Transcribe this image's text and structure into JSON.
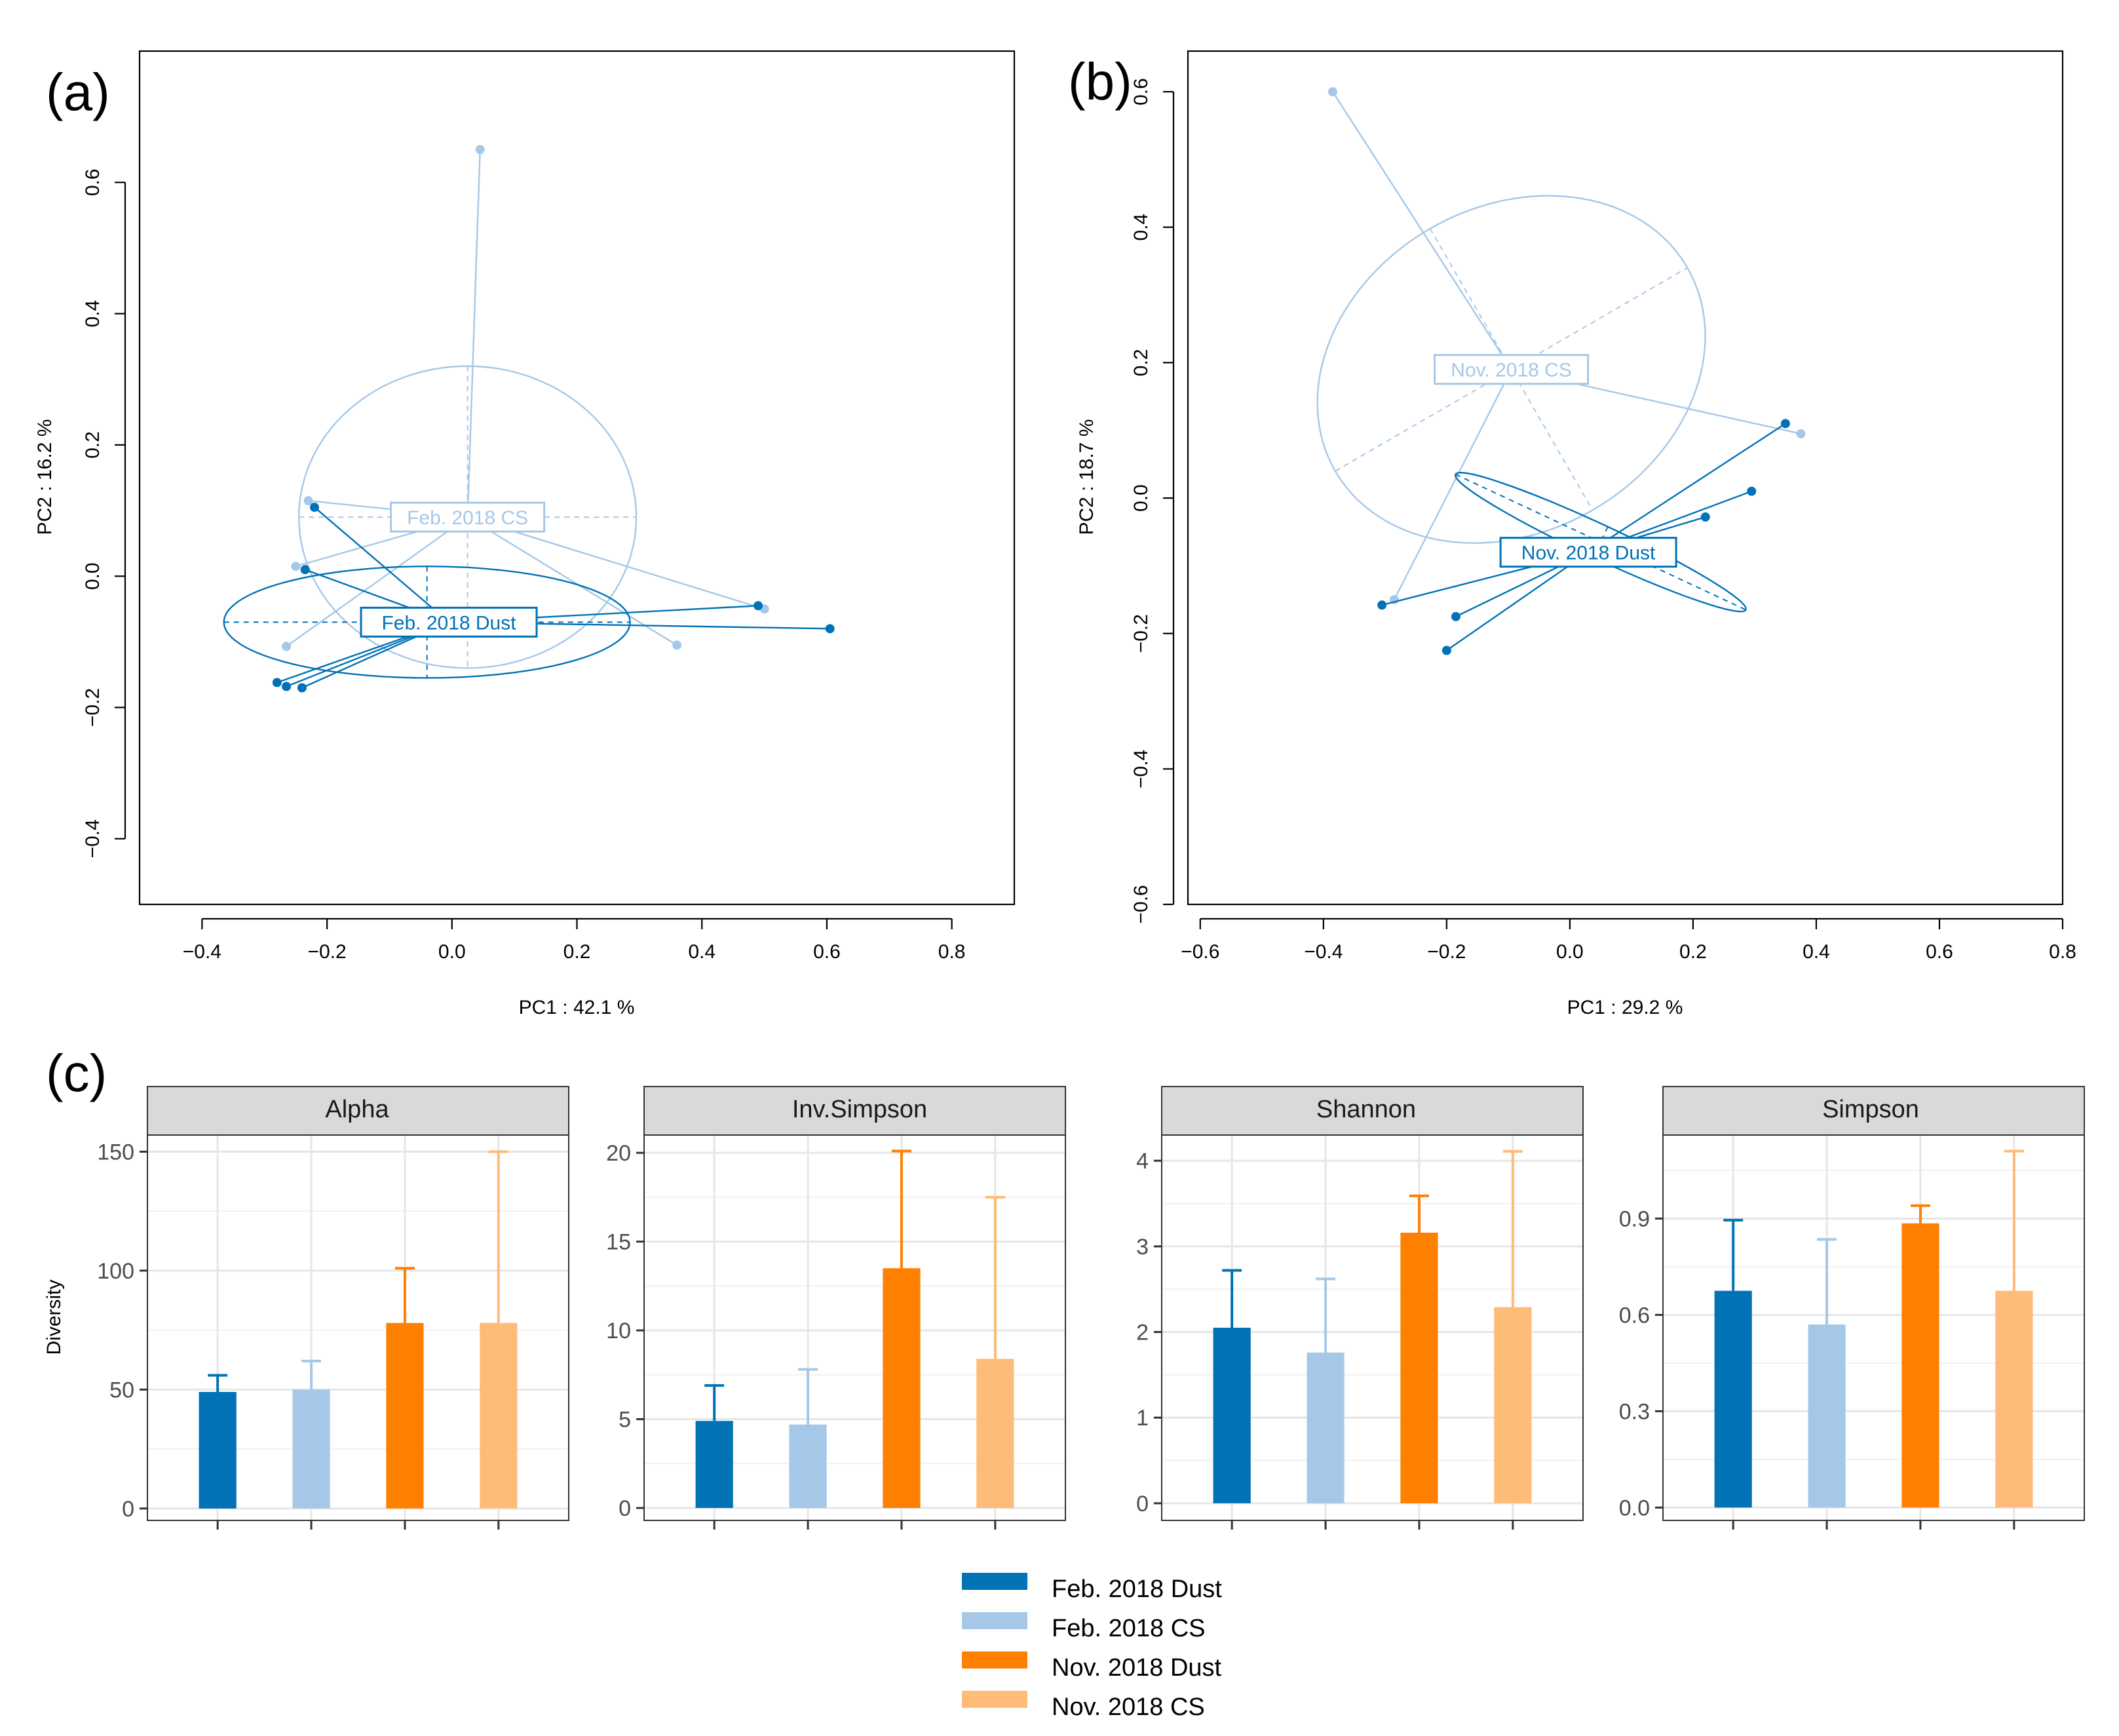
{
  "panel_labels": [
    "(a)",
    "(b)",
    "(c)"
  ],
  "colors": {
    "feb_dust": "#0072b5",
    "feb_cs": "#a6c8e8",
    "nov_dust": "#ff7f00",
    "nov_cs": "#ffbb78"
  },
  "chart_data": [
    {
      "type": "scatter",
      "panel": "(a)",
      "xlabel": "PC1 :  42.1 %",
      "ylabel": "PC2 :  16.2 %",
      "xlim": [
        -0.5,
        0.9
      ],
      "ylim": [
        -0.5,
        0.8
      ],
      "xticks": [
        -0.4,
        -0.2,
        0.0,
        0.2,
        0.4,
        0.6,
        0.8
      ],
      "xtick_labels": [
        "−0.4",
        "−0.2",
        "0.0",
        "0.2",
        "0.4",
        "0.6",
        "0.8"
      ],
      "yticks": [
        -0.4,
        -0.2,
        0.0,
        0.2,
        0.4,
        0.6
      ],
      "ytick_labels": [
        "−0.4",
        "−0.2",
        "0.0",
        "0.2",
        "0.4",
        "0.6"
      ],
      "groups": [
        {
          "name": "Feb. 2018 CS",
          "label": "Feb. 2018 CS",
          "color": "#a6c8e8",
          "centroid": [
            0.025,
            0.09
          ],
          "points": [
            [
              0.045,
              0.65
            ],
            [
              -0.23,
              0.115
            ],
            [
              -0.25,
              0.015
            ],
            [
              -0.265,
              -0.107
            ],
            [
              0.36,
              -0.105
            ],
            [
              0.5,
              -0.05
            ]
          ],
          "ellipse": {
            "center": [
              0.025,
              0.09
            ],
            "axes": [
              0.27,
              0.23
            ],
            "angle": 0
          }
        },
        {
          "name": "Feb. 2018 Dust",
          "label": "Feb. 2018 Dust",
          "color": "#0072b5",
          "centroid": [
            -0.005,
            -0.07
          ],
          "points": [
            [
              -0.22,
              0.105
            ],
            [
              -0.235,
              0.01
            ],
            [
              -0.28,
              -0.162
            ],
            [
              -0.265,
              -0.168
            ],
            [
              -0.24,
              -0.17
            ],
            [
              0.49,
              -0.045
            ],
            [
              0.605,
              -0.08
            ]
          ],
          "ellipse": {
            "center": [
              -0.04,
              -0.07
            ],
            "axes": [
              0.325,
              0.085
            ],
            "angle": 0
          }
        }
      ]
    },
    {
      "type": "scatter",
      "panel": "(b)",
      "xlabel": "PC1 :  29.2 %",
      "ylabel": "PC2 :  18.7 %",
      "xlim": [
        -0.62,
        0.8
      ],
      "ylim": [
        -0.6,
        0.66
      ],
      "xticks": [
        -0.6,
        -0.4,
        -0.2,
        0.0,
        0.2,
        0.4,
        0.6,
        0.8
      ],
      "xtick_labels": [
        "−0.6",
        "−0.4",
        "−0.2",
        "0.0",
        "0.2",
        "0.4",
        "0.6",
        "0.8"
      ],
      "yticks": [
        -0.6,
        -0.4,
        -0.2,
        0.0,
        0.2,
        0.4,
        0.6
      ],
      "ytick_labels": [
        "−0.6",
        "−0.4",
        "−0.2",
        "0.0",
        "0.2",
        "0.4",
        "0.6"
      ],
      "groups": [
        {
          "name": "Nov. 2018 CS",
          "label": "Nov. 2018 CS",
          "color": "#a6c8e8",
          "centroid": [
            -0.095,
            0.19
          ],
          "points": [
            [
              -0.385,
              0.6
            ],
            [
              -0.285,
              -0.15
            ],
            [
              0.375,
              0.095
            ]
          ],
          "ellipse": {
            "center": [
              -0.095,
              0.19
            ],
            "axes": [
              0.33,
              0.24
            ],
            "angle": -30
          }
        },
        {
          "name": "Nov. 2018 Dust",
          "label": "Nov. 2018 Dust",
          "color": "#0072b5",
          "centroid": [
            0.03,
            -0.08
          ],
          "points": [
            [
              0.35,
              0.11
            ],
            [
              0.295,
              0.01
            ],
            [
              0.22,
              -0.028
            ],
            [
              -0.305,
              -0.158
            ],
            [
              -0.185,
              -0.175
            ],
            [
              -0.2,
              -0.225
            ]
          ],
          "ellipse": {
            "center": [
              0.05,
              -0.065
            ],
            "axes": [
              0.26,
              0.025
            ],
            "angle": 25
          }
        }
      ]
    },
    {
      "type": "bar",
      "panel": "(c)",
      "facet": "Alpha",
      "ylabel": "Diversity",
      "categories": [
        "Feb. 2018 Dust",
        "Feb. 2018 CS",
        "Nov. 2018 Dust",
        "Nov. 2018 CS"
      ],
      "values": [
        49,
        50,
        78,
        78
      ],
      "errors": [
        7,
        12,
        23,
        72
      ],
      "ylim": [
        -5,
        157
      ],
      "yticks": [
        0,
        50,
        100,
        150
      ],
      "ytick_labels": [
        "0",
        "50",
        "100",
        "150"
      ]
    },
    {
      "type": "bar",
      "panel": "(c)",
      "facet": "Inv.Simpson",
      "categories": [
        "Feb. 2018 Dust",
        "Feb. 2018 CS",
        "Nov. 2018 Dust",
        "Nov. 2018 CS"
      ],
      "values": [
        4.9,
        4.7,
        13.5,
        8.4
      ],
      "errors": [
        2.0,
        3.1,
        6.6,
        9.1
      ],
      "ylim": [
        -0.7,
        21
      ],
      "yticks": [
        0,
        5,
        10,
        15,
        20
      ],
      "ytick_labels": [
        "0",
        "5",
        "10",
        "15",
        "20"
      ]
    },
    {
      "type": "bar",
      "panel": "(c)",
      "facet": "Shannon",
      "categories": [
        "Feb. 2018 Dust",
        "Feb. 2018 CS",
        "Nov. 2018 Dust",
        "Nov. 2018 CS"
      ],
      "values": [
        2.05,
        1.76,
        3.16,
        2.29
      ],
      "errors": [
        0.67,
        0.86,
        0.43,
        1.82
      ],
      "ylim": [
        -0.2,
        4.3
      ],
      "yticks": [
        0,
        1,
        2,
        3,
        4
      ],
      "ytick_labels": [
        "0",
        "1",
        "2",
        "3",
        "4"
      ]
    },
    {
      "type": "bar",
      "panel": "(c)",
      "facet": "Simpson",
      "categories": [
        "Feb. 2018 Dust",
        "Feb. 2018 CS",
        "Nov. 2018 Dust",
        "Nov. 2018 CS"
      ],
      "values": [
        0.675,
        0.57,
        0.885,
        0.675
      ],
      "errors": [
        0.22,
        0.265,
        0.055,
        0.435
      ],
      "ylim": [
        -0.04,
        1.16
      ],
      "yticks": [
        0.0,
        0.3,
        0.6,
        0.9
      ],
      "ytick_labels": [
        "0.0",
        "0.3",
        "0.6",
        "0.9"
      ]
    }
  ],
  "legend": [
    {
      "label": "Feb. 2018 Dust",
      "color": "#0072b5"
    },
    {
      "label": "Feb. 2018 CS",
      "color": "#a6c8e8"
    },
    {
      "label": "Nov. 2018 Dust",
      "color": "#ff7f00"
    },
    {
      "label": "Nov. 2018 CS",
      "color": "#ffbb78"
    }
  ]
}
